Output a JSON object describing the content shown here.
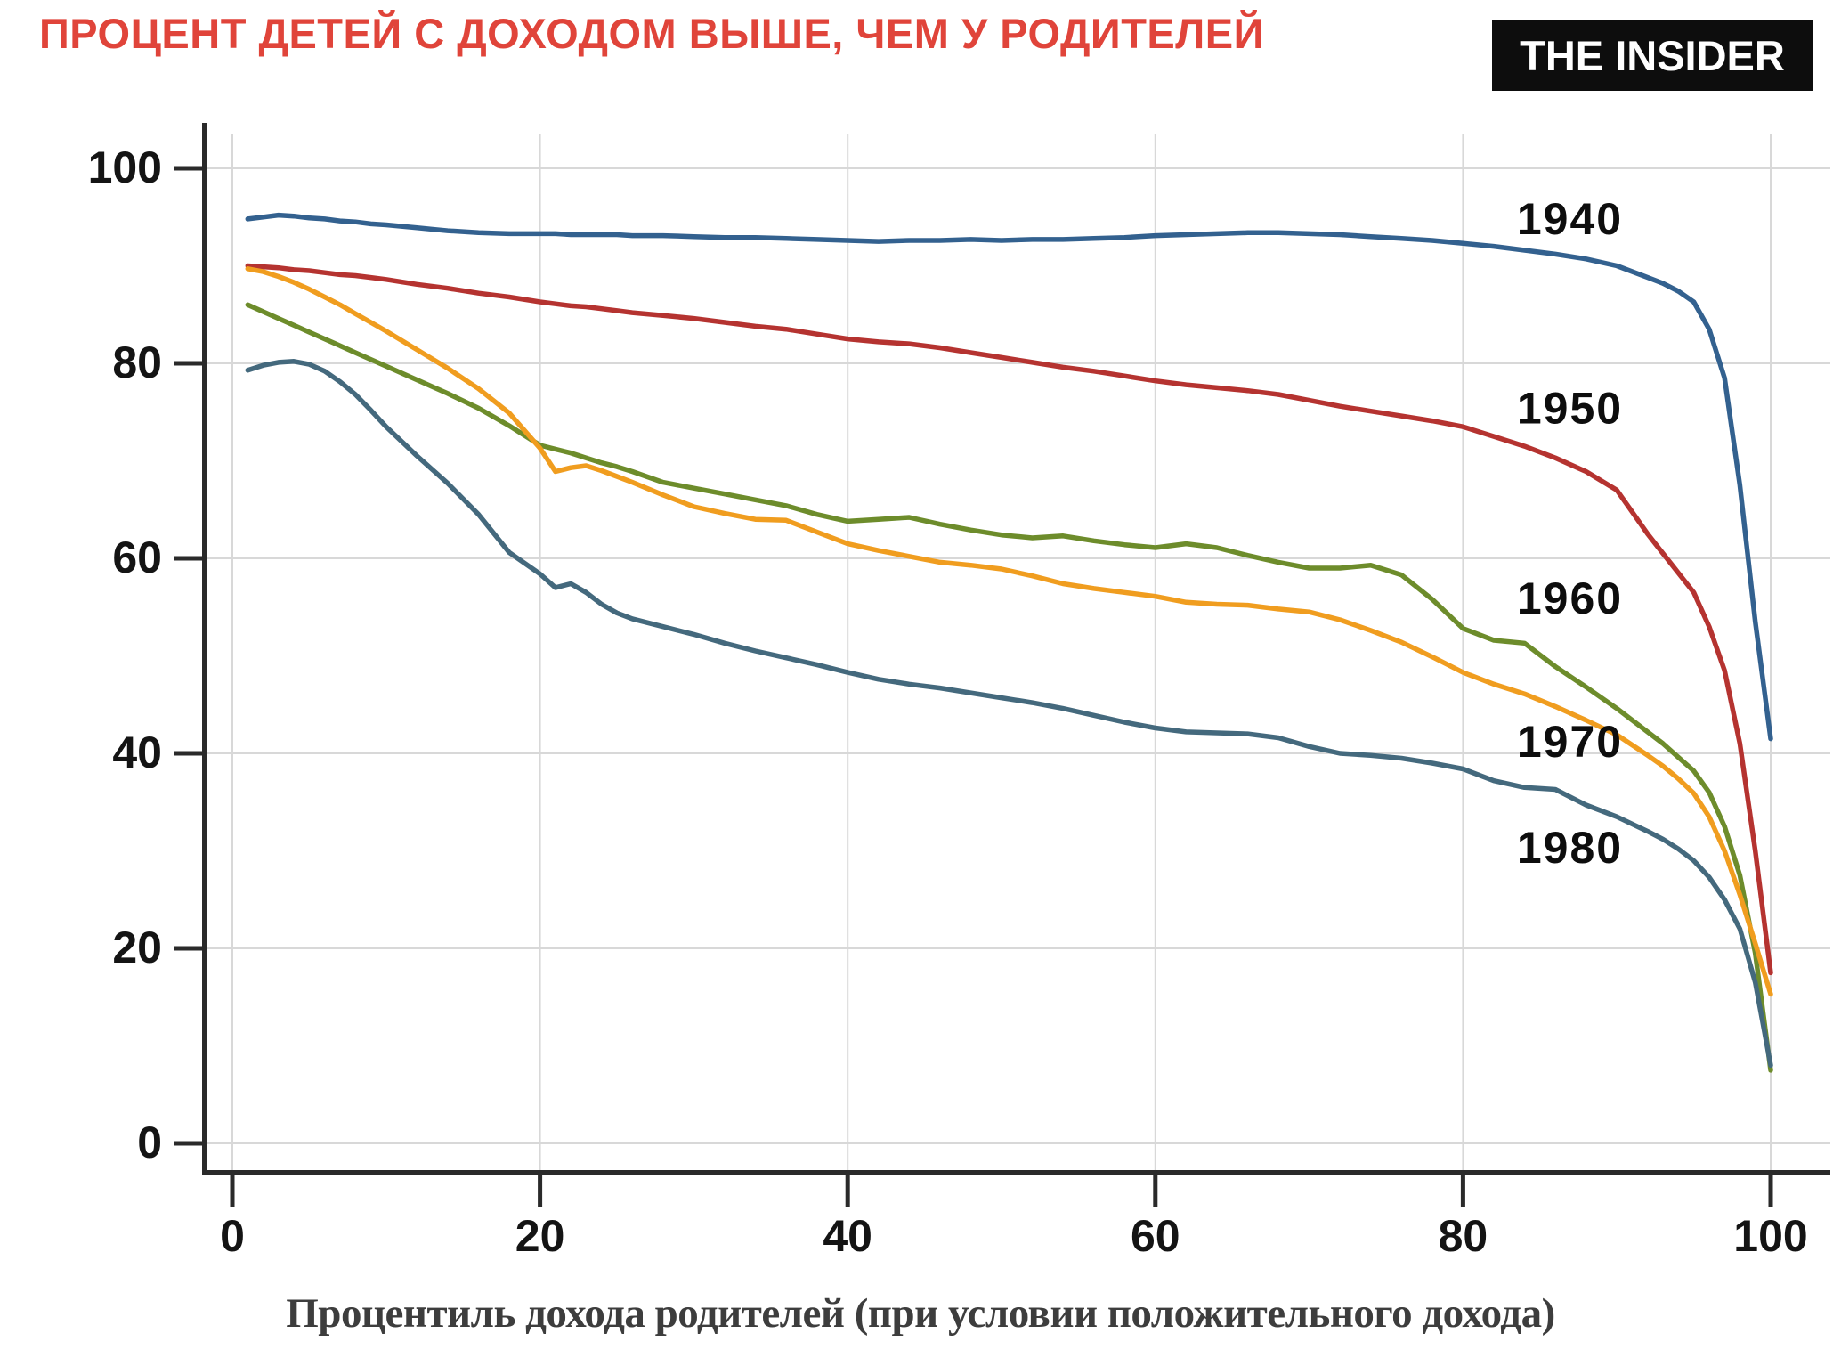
{
  "header": {
    "title": "ПРОЦЕНТ ДЕТЕЙ С ДОХОДОМ ВЫШЕ, ЧЕМ У РОДИТЕЛЕЙ",
    "title_color": "#e0443a",
    "logo_text": "THE INSIDER",
    "logo_bg": "#0d0d0d",
    "logo_fg": "#ffffff"
  },
  "chart_data": {
    "type": "line",
    "title": "ПРОЦЕНТ ДЕТЕЙ С ДОХОДОМ ВЫШЕ, ЧЕМ У РОДИТЕЛЕЙ",
    "xlabel": "Процентиль дохода родителей (при условии положительного дохода)",
    "ylabel": "",
    "xlim": [
      0,
      100
    ],
    "ylim": [
      0,
      100
    ],
    "x_ticks": [
      0,
      20,
      40,
      60,
      80,
      100
    ],
    "y_ticks": [
      0,
      20,
      40,
      60,
      80,
      100
    ],
    "grid": true,
    "grid_color": "#d8d8d8",
    "axis_color": "#2a2a2a",
    "tick_label_color": "#141414",
    "legend_position": "inline-right",
    "x": [
      1,
      2,
      3,
      4,
      5,
      6,
      7,
      8,
      9,
      10,
      12,
      14,
      16,
      18,
      20,
      21,
      22,
      23,
      24,
      25,
      26,
      28,
      30,
      32,
      34,
      36,
      38,
      40,
      42,
      44,
      46,
      48,
      50,
      52,
      54,
      56,
      58,
      60,
      62,
      64,
      66,
      68,
      70,
      72,
      74,
      76,
      78,
      80,
      82,
      84,
      86,
      88,
      90,
      92,
      93,
      94,
      95,
      96,
      97,
      98,
      99,
      100
    ],
    "series": [
      {
        "name": "1940",
        "color": "#33618f",
        "label_x": 83.5,
        "label_y": 94.8,
        "values": [
          94.8,
          95.0,
          95.2,
          95.1,
          94.9,
          94.8,
          94.6,
          94.5,
          94.3,
          94.2,
          93.9,
          93.6,
          93.4,
          93.3,
          93.3,
          93.3,
          93.2,
          93.2,
          93.2,
          93.2,
          93.1,
          93.1,
          93.0,
          92.9,
          92.9,
          92.8,
          92.7,
          92.6,
          92.5,
          92.6,
          92.6,
          92.7,
          92.6,
          92.7,
          92.7,
          92.8,
          92.9,
          93.1,
          93.2,
          93.3,
          93.4,
          93.4,
          93.3,
          93.2,
          93.0,
          92.8,
          92.6,
          92.3,
          92.0,
          91.6,
          91.2,
          90.7,
          90.0,
          88.8,
          88.2,
          87.4,
          86.3,
          83.5,
          78.5,
          67.5,
          53.5,
          41.5
        ]
      },
      {
        "name": "1950",
        "color": "#b53330",
        "label_x": 83.5,
        "label_y": 75.4,
        "values": [
          90.0,
          89.9,
          89.8,
          89.6,
          89.5,
          89.3,
          89.1,
          89.0,
          88.8,
          88.6,
          88.1,
          87.7,
          87.2,
          86.8,
          86.3,
          86.1,
          85.9,
          85.8,
          85.6,
          85.4,
          85.2,
          84.9,
          84.6,
          84.2,
          83.8,
          83.5,
          83.0,
          82.5,
          82.2,
          82.0,
          81.6,
          81.1,
          80.6,
          80.1,
          79.6,
          79.2,
          78.7,
          78.2,
          77.8,
          77.5,
          77.2,
          76.8,
          76.2,
          75.6,
          75.1,
          74.6,
          74.1,
          73.5,
          72.5,
          71.5,
          70.3,
          68.9,
          67.0,
          62.5,
          60.5,
          58.5,
          56.5,
          53.0,
          48.5,
          41.0,
          30.0,
          17.5
        ]
      },
      {
        "name": "1960",
        "color": "#6d8c2b",
        "label_x": 83.5,
        "label_y": 55.9,
        "values": [
          86.0,
          85.3,
          84.6,
          83.9,
          83.2,
          82.5,
          81.8,
          81.1,
          80.4,
          79.7,
          78.3,
          76.9,
          75.4,
          73.6,
          71.6,
          71.2,
          70.8,
          70.3,
          69.8,
          69.4,
          68.9,
          67.8,
          67.2,
          66.6,
          66.0,
          65.4,
          64.5,
          63.8,
          64.0,
          64.2,
          63.5,
          62.9,
          62.4,
          62.1,
          62.3,
          61.8,
          61.4,
          61.1,
          61.5,
          61.1,
          60.3,
          59.6,
          59.0,
          59.0,
          59.3,
          58.3,
          55.8,
          52.8,
          51.6,
          51.3,
          48.9,
          46.8,
          44.6,
          42.2,
          41.0,
          39.6,
          38.2,
          36.0,
          32.5,
          27.5,
          19.5,
          7.5
        ]
      },
      {
        "name": "1970",
        "color": "#f09d1f",
        "label_x": 83.5,
        "label_y": 41.2,
        "values": [
          89.7,
          89.4,
          88.9,
          88.3,
          87.6,
          86.8,
          86.0,
          85.1,
          84.2,
          83.3,
          81.4,
          79.5,
          77.4,
          74.9,
          71.3,
          68.9,
          69.3,
          69.5,
          69.0,
          68.4,
          67.8,
          66.5,
          65.3,
          64.6,
          64.0,
          63.9,
          62.7,
          61.5,
          60.8,
          60.2,
          59.6,
          59.3,
          58.9,
          58.2,
          57.4,
          56.9,
          56.5,
          56.1,
          55.5,
          55.3,
          55.2,
          54.8,
          54.5,
          53.7,
          52.6,
          51.4,
          49.9,
          48.3,
          47.1,
          46.1,
          44.8,
          43.4,
          41.9,
          39.8,
          38.7,
          37.4,
          35.9,
          33.5,
          30.0,
          25.5,
          20.5,
          15.3
        ]
      },
      {
        "name": "1980",
        "color": "#44697d",
        "label_x": 83.5,
        "label_y": 30.3,
        "values": [
          79.3,
          79.8,
          80.1,
          80.2,
          79.9,
          79.2,
          78.1,
          76.8,
          75.2,
          73.5,
          70.5,
          67.7,
          64.5,
          60.6,
          58.4,
          57.0,
          57.4,
          56.5,
          55.3,
          54.4,
          53.8,
          53.0,
          52.2,
          51.3,
          50.5,
          49.8,
          49.1,
          48.3,
          47.6,
          47.1,
          46.7,
          46.2,
          45.7,
          45.2,
          44.6,
          43.9,
          43.2,
          42.6,
          42.2,
          42.1,
          42.0,
          41.6,
          40.7,
          40.0,
          39.8,
          39.5,
          39.0,
          38.4,
          37.2,
          36.5,
          36.3,
          34.7,
          33.5,
          32.0,
          31.2,
          30.2,
          29.0,
          27.3,
          25.0,
          22.0,
          16.5,
          8.0
        ]
      }
    ]
  }
}
